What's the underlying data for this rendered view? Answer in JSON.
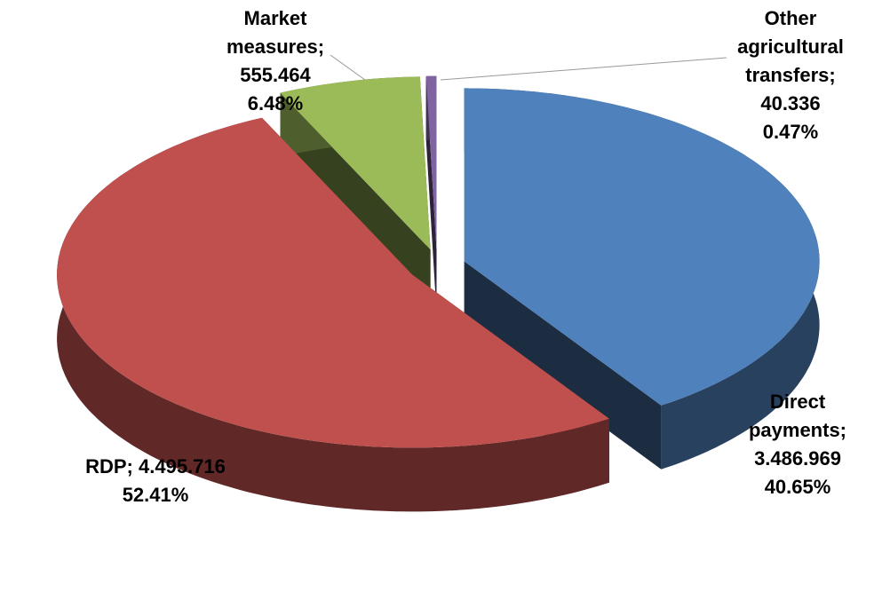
{
  "chart_data": {
    "type": "pie",
    "categories": [
      "Direct payments;",
      "RDP;",
      "Market measures;",
      "Other agricultural transfers;"
    ],
    "values": [
      3486969,
      4495716,
      555464,
      40336
    ],
    "value_labels": [
      "3.486.969",
      "4.495.716",
      "555.464",
      "40.336"
    ],
    "percents": [
      40.65,
      52.41,
      6.48,
      0.47
    ],
    "percent_labels": [
      "40.65%",
      "52.41%",
      "6.48%",
      "0.47%"
    ],
    "colors": [
      "#4f81bd",
      "#c0504d",
      "#9bbb59",
      "#8064a2"
    ]
  }
}
